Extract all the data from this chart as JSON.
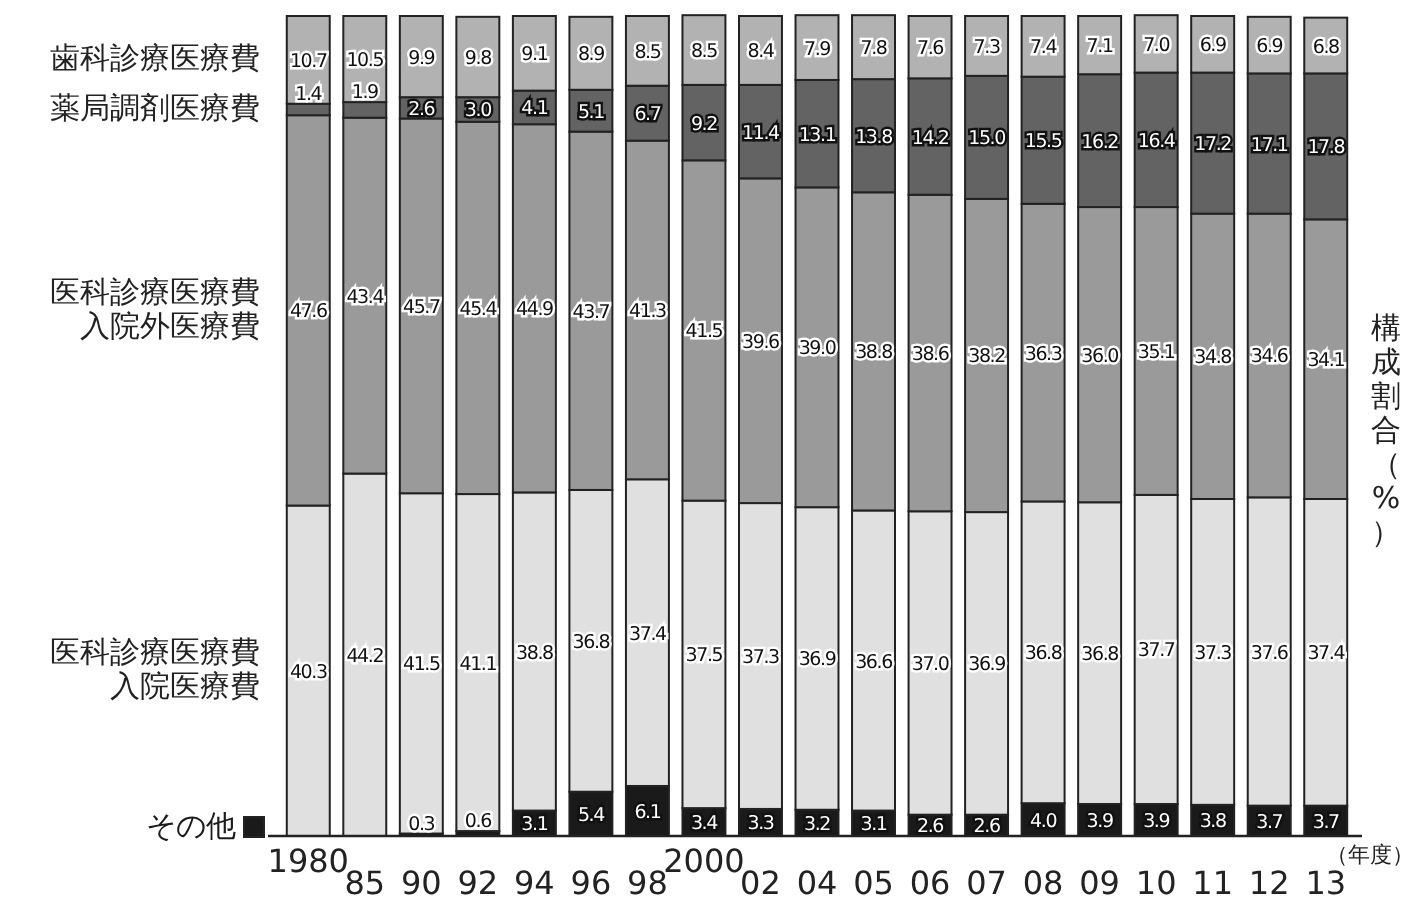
{
  "chart_data": {
    "type": "bar",
    "stacked": true,
    "ylim": [
      0,
      100
    ],
    "tick_labels": "x",
    "ylabel": "構成割合（%）",
    "annotations": [
      "（年度）"
    ],
    "categories": [
      "1980",
      "85",
      "90",
      "92",
      "94",
      "96",
      "98",
      "2000",
      "02",
      "04",
      "05",
      "06",
      "07",
      "08",
      "09",
      "10",
      "11",
      "12",
      "13"
    ],
    "series": [
      {
        "name": "その他",
        "color": "#1a1a1a",
        "values": [
          null,
          null,
          0.3,
          0.6,
          3.1,
          5.4,
          6.1,
          3.4,
          3.3,
          3.2,
          3.1,
          2.6,
          2.6,
          4.0,
          3.9,
          3.9,
          3.8,
          3.7,
          3.7
        ],
        "value_labels": [
          null,
          null,
          "0.3",
          "0.6",
          "3.1",
          "5.4",
          "6.1",
          "3.4",
          "3.3",
          "3.2",
          "3.1",
          "2.6",
          "2.6",
          "4.0",
          "3.9",
          "3.9",
          "3.8",
          "3.7",
          "3.7"
        ]
      },
      {
        "name": "医科診療医療費入院医療費",
        "color": "#e0e0e0",
        "values": [
          40.3,
          44.2,
          41.5,
          41.1,
          38.8,
          36.8,
          37.4,
          37.5,
          37.3,
          36.9,
          36.6,
          37.0,
          36.9,
          36.8,
          36.8,
          37.7,
          37.3,
          37.6,
          37.4
        ],
        "value_labels": [
          "40.3",
          "44.2",
          "41.5",
          "41.1",
          "38.8",
          "36.8",
          "37.4",
          "37.5",
          "37.3",
          "36.9",
          "36.6",
          "37.0",
          "36.9",
          "36.8",
          "36.8",
          "37.7",
          "37.3",
          "37.6",
          "37.4"
        ]
      },
      {
        "name": "医科診療医療費入院外医療費",
        "color": "#9a9a9a",
        "values": [
          47.6,
          43.4,
          45.7,
          45.4,
          44.9,
          43.7,
          41.3,
          41.5,
          39.6,
          39.0,
          38.8,
          38.6,
          38.2,
          36.3,
          36.0,
          35.1,
          34.8,
          34.6,
          34.1
        ],
        "value_labels": [
          "47.6",
          "43.4",
          "45.7",
          "45.4",
          "44.9",
          "43.7",
          "41.3",
          "41.5",
          "39.6",
          "39.0",
          "38.8",
          "38.6",
          "38.2",
          "36.3",
          "36.0",
          "35.1",
          "34.8",
          "34.6",
          "34.1"
        ]
      },
      {
        "name": "薬局調剤医療費",
        "color": "#636363",
        "values": [
          1.4,
          1.9,
          2.6,
          3.0,
          4.1,
          5.1,
          6.7,
          9.2,
          11.4,
          13.1,
          13.8,
          14.2,
          15.0,
          15.5,
          16.2,
          16.4,
          17.2,
          17.1,
          17.8
        ],
        "value_labels": [
          "1.4",
          "1.9",
          "2.6",
          "3.0",
          "4.1",
          "5.1",
          "6.7",
          "9.2",
          "11.4",
          "13.1",
          "13.8",
          "14.2",
          "15.0",
          "15.5",
          "16.2",
          "16.4",
          "17.2",
          "17.1",
          "17.8"
        ]
      },
      {
        "name": "歯科診療医療費",
        "color": "#b2b2b2",
        "values": [
          10.7,
          10.5,
          9.9,
          9.8,
          9.1,
          8.9,
          8.5,
          8.5,
          8.4,
          7.9,
          7.8,
          7.6,
          7.3,
          7.4,
          7.1,
          7.0,
          6.9,
          6.9,
          6.8
        ],
        "value_labels": [
          "10.7",
          "10.5",
          "9.9",
          "9.8",
          "9.1",
          "8.9",
          "8.5",
          "8.5",
          "8.4",
          "7.9",
          "7.8",
          "7.6",
          "7.3",
          "7.4",
          "7.1",
          "7.0",
          "6.9",
          "6.9",
          "6.8"
        ]
      }
    ]
  }
}
